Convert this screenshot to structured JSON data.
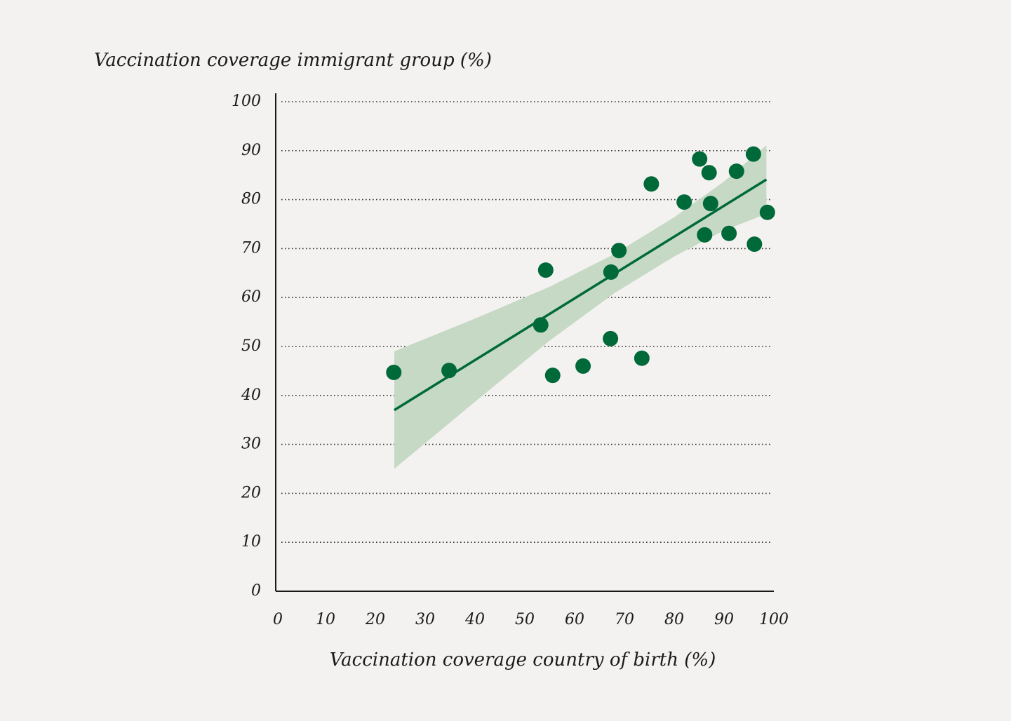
{
  "chart_data": {
    "type": "scatter",
    "y_label": "Vaccination coverage immigrant group (%)",
    "x_label": "Vaccination coverage country of birth (%)",
    "x": [
      23.7,
      34.8,
      53.2,
      54.2,
      55.6,
      61.7,
      67.2,
      67.3,
      68.9,
      73.5,
      75.4,
      82.0,
      85.1,
      86.1,
      87.0,
      87.3,
      91.0,
      92.5,
      95.9,
      96.1,
      98.7
    ],
    "values": [
      44.7,
      45.1,
      54.4,
      65.6,
      44.1,
      46.0,
      51.6,
      65.2,
      69.6,
      47.6,
      83.2,
      79.5,
      88.3,
      72.8,
      85.5,
      79.2,
      73.1,
      85.8,
      89.3,
      70.9,
      77.4
    ],
    "color": "#00693a",
    "trend": {
      "x": [
        23.8,
        98.5
      ],
      "values": [
        37.0,
        84.1
      ],
      "color": "#00693a"
    },
    "band": {
      "x": [
        23.8,
        40,
        55,
        68,
        80,
        90,
        98.5
      ],
      "upper": [
        49.0,
        55.7,
        62.2,
        68.9,
        76.4,
        83.7,
        91.1
      ],
      "lower": [
        25.0,
        38.7,
        51.2,
        60.9,
        68.4,
        73.7,
        77.1
      ],
      "color": "#c5d9c4"
    },
    "xlim": [
      0,
      100
    ],
    "ylim": [
      0,
      100
    ],
    "xticks": [
      0,
      10,
      20,
      30,
      40,
      50,
      60,
      70,
      80,
      90,
      100
    ],
    "yticks": [
      0,
      10,
      20,
      30,
      40,
      50,
      60,
      70,
      80,
      90,
      100
    ],
    "grid": true
  }
}
